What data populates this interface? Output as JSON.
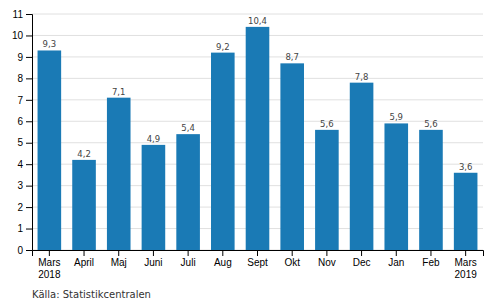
{
  "chart_data": {
    "type": "bar",
    "categories": [
      "Mars\n2018",
      "April",
      "Maj",
      "Juni",
      "Juli",
      "Aug",
      "Sept",
      "Okt",
      "Nov",
      "Dec",
      "Jan",
      "Feb",
      "Mars\n2019"
    ],
    "values": [
      9.3,
      4.2,
      7.1,
      4.9,
      5.4,
      9.2,
      10.4,
      8.7,
      5.6,
      7.8,
      5.9,
      5.6,
      3.6
    ],
    "value_labels": [
      "9,3",
      "4,2",
      "7,1",
      "4,9",
      "5,4",
      "9,2",
      "10,4",
      "8,7",
      "5,6",
      "7,8",
      "5,9",
      "5,6",
      "3,6"
    ],
    "data_labels": true,
    "color": "#1a7ab5",
    "ylim": [
      0,
      11
    ],
    "yticks": [
      0,
      1,
      2,
      3,
      4,
      5,
      6,
      7,
      8,
      9,
      10,
      11
    ],
    "grid": true,
    "annotations": [
      "Källa: Statistikcentralen"
    ]
  }
}
